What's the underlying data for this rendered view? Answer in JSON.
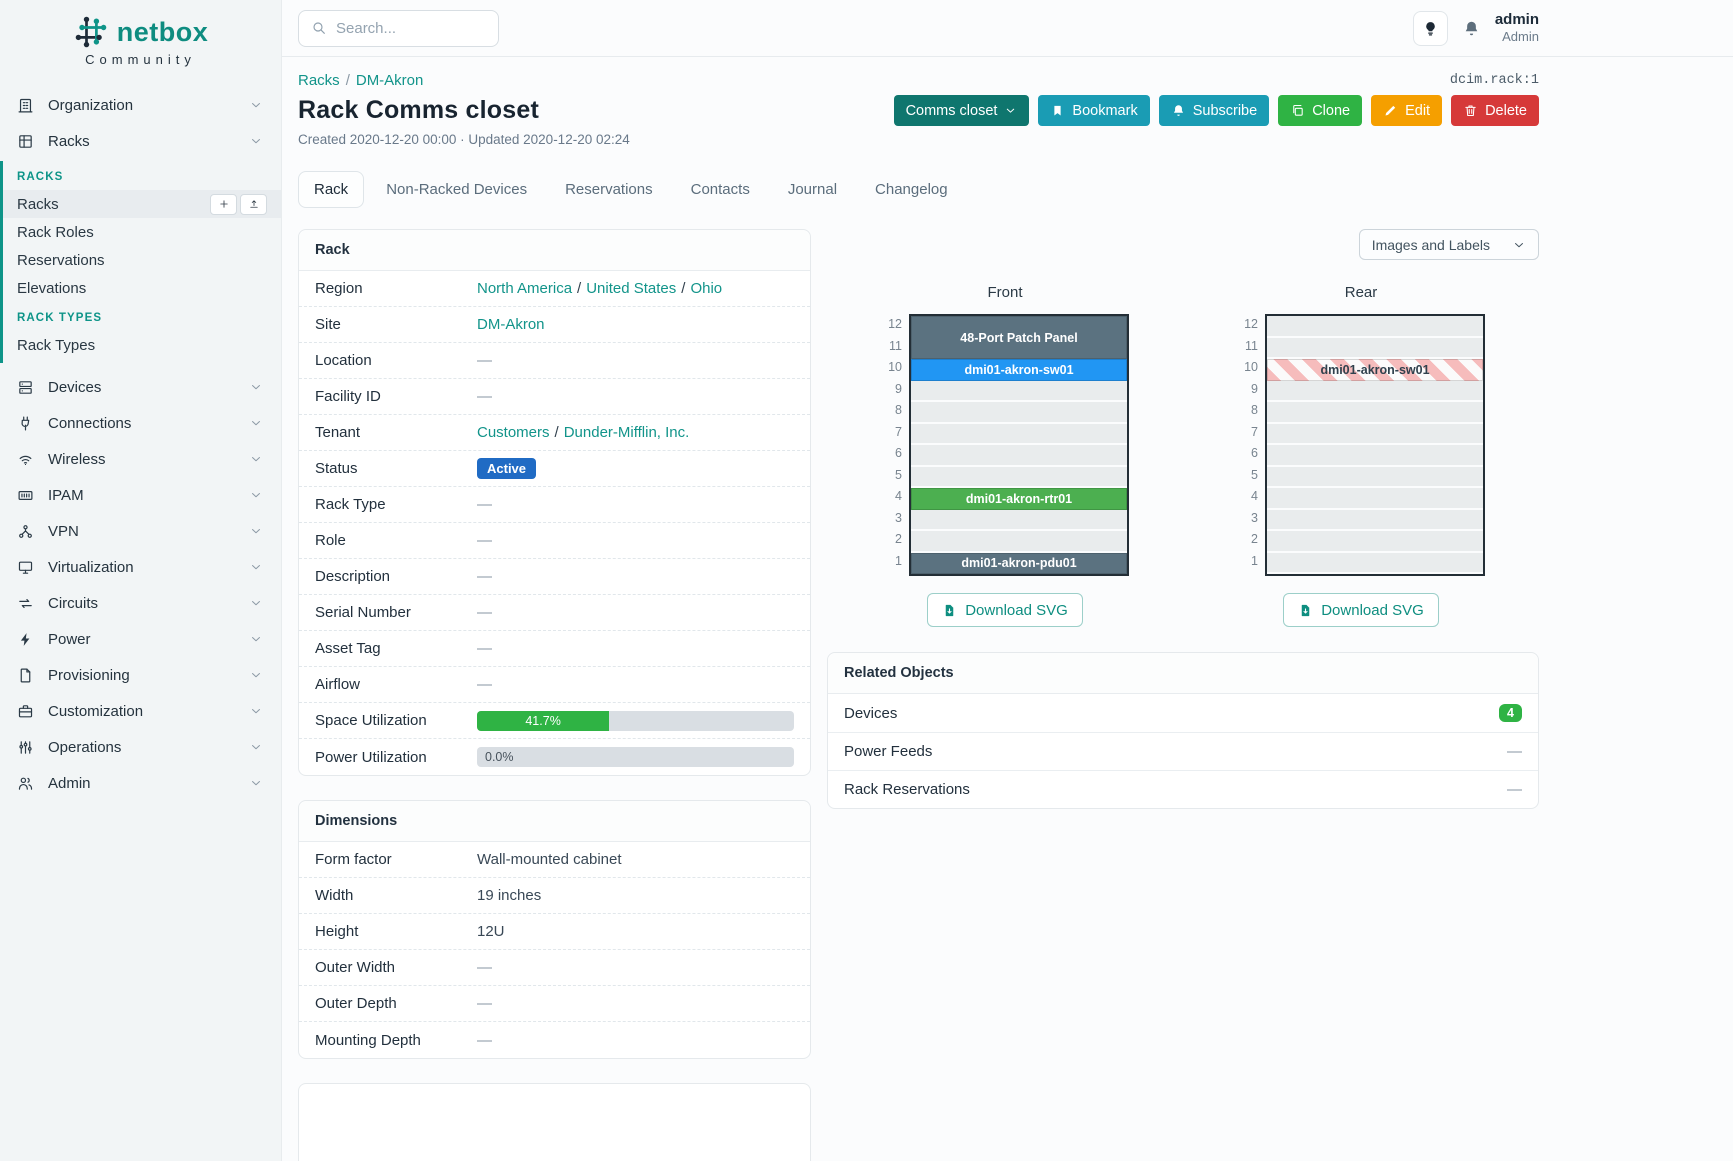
{
  "brand": {
    "name": "netbox",
    "subtitle": "Community"
  },
  "topbar": {
    "search_placeholder": "Search...",
    "user_name": "admin",
    "user_role": "Admin"
  },
  "breadcrumb": {
    "links": [
      "Racks",
      "DM-Akron"
    ],
    "object_id": "dcim.rack:1"
  },
  "page": {
    "title": "Rack Comms closet",
    "meta": "Created 2020-12-20 00:00 · Updated 2020-12-20 02:24"
  },
  "actions": {
    "selector_label": "Comms closet",
    "buttons": [
      {
        "id": "bookmark",
        "label": "Bookmark",
        "icon": "bookmark-icon",
        "color": "#1a9cb4"
      },
      {
        "id": "subscribe",
        "label": "Subscribe",
        "icon": "bell-plus-icon",
        "color": "#1a9cb4"
      },
      {
        "id": "clone",
        "label": "Clone",
        "icon": "copy-icon",
        "color": "#2fb344"
      },
      {
        "id": "edit",
        "label": "Edit",
        "icon": "pencil-icon",
        "color": "#f59f00"
      },
      {
        "id": "delete",
        "label": "Delete",
        "icon": "trash-icon",
        "color": "#d63939"
      }
    ]
  },
  "tabs": [
    {
      "label": "Rack",
      "active": true
    },
    {
      "label": "Non-Racked Devices"
    },
    {
      "label": "Reservations"
    },
    {
      "label": "Contacts"
    },
    {
      "label": "Journal"
    },
    {
      "label": "Changelog"
    }
  ],
  "sidebar": {
    "groups_top": [
      {
        "label": "Organization",
        "icon": "building-icon"
      },
      {
        "label": "Racks",
        "icon": "rack-grid-icon",
        "expanded": true
      }
    ],
    "sections": [
      {
        "header": "RACKS",
        "items": [
          {
            "label": "Racks",
            "active": true,
            "quick_add": true
          },
          {
            "label": "Rack Roles"
          },
          {
            "label": "Reservations"
          },
          {
            "label": "Elevations"
          }
        ]
      },
      {
        "header": "RACK TYPES",
        "items": [
          {
            "label": "Rack Types"
          }
        ]
      }
    ],
    "groups_bottom": [
      {
        "label": "Devices",
        "icon": "server-icon"
      },
      {
        "label": "Connections",
        "icon": "plug-icon"
      },
      {
        "label": "Wireless",
        "icon": "wifi-icon"
      },
      {
        "label": "IPAM",
        "icon": "ipam-icon"
      },
      {
        "label": "VPN",
        "icon": "vpn-icon"
      },
      {
        "label": "Virtualization",
        "icon": "monitor-icon"
      },
      {
        "label": "Circuits",
        "icon": "circuits-icon"
      },
      {
        "label": "Power",
        "icon": "bolt-icon"
      },
      {
        "label": "Provisioning",
        "icon": "file-icon"
      },
      {
        "label": "Customization",
        "icon": "briefcase-icon"
      },
      {
        "label": "Operations",
        "icon": "ops-icon"
      },
      {
        "label": "Admin",
        "icon": "users-icon"
      }
    ]
  },
  "rack_panel": {
    "title": "Rack",
    "rows": [
      {
        "label": "Region",
        "type": "links",
        "links": [
          "North America",
          "United States",
          "Ohio"
        ]
      },
      {
        "label": "Site",
        "type": "links",
        "links": [
          "DM-Akron"
        ]
      },
      {
        "label": "Location",
        "type": "dash",
        "value": "—"
      },
      {
        "label": "Facility ID",
        "type": "dash",
        "value": "—"
      },
      {
        "label": "Tenant",
        "type": "links",
        "links": [
          "Customers",
          "Dunder-Mifflin, Inc."
        ]
      },
      {
        "label": "Status",
        "type": "badge",
        "value": "Active",
        "color": "#206bc4"
      },
      {
        "label": "Rack Type",
        "type": "dash",
        "value": "—"
      },
      {
        "label": "Role",
        "type": "dash",
        "value": "—"
      },
      {
        "label": "Description",
        "type": "dash",
        "value": "—"
      },
      {
        "label": "Serial Number",
        "type": "dash",
        "value": "—"
      },
      {
        "label": "Asset Tag",
        "type": "dash",
        "value": "—"
      },
      {
        "label": "Airflow",
        "type": "dash",
        "value": "—"
      },
      {
        "label": "Space Utilization",
        "type": "progress",
        "value": "41.7%",
        "pct": 41.7,
        "color": "#2fb344"
      },
      {
        "label": "Power Utilization",
        "type": "progress",
        "value": "0.0%",
        "pct": 0,
        "color": "#2fb344"
      }
    ]
  },
  "dimensions_panel": {
    "title": "Dimensions",
    "rows": [
      {
        "label": "Form factor",
        "type": "text",
        "value": "Wall-mounted cabinet"
      },
      {
        "label": "Width",
        "type": "text",
        "value": "19 inches"
      },
      {
        "label": "Height",
        "type": "text",
        "value": "12U"
      },
      {
        "label": "Outer Width",
        "type": "dash",
        "value": "—"
      },
      {
        "label": "Outer Depth",
        "type": "dash",
        "value": "—"
      },
      {
        "label": "Mounting Depth",
        "type": "dash",
        "value": "—"
      }
    ]
  },
  "elevations": {
    "view_toggle": "Images and Labels",
    "download_label": "Download SVG",
    "unit_count": 12,
    "views": [
      {
        "title": "Front",
        "units": [
          {
            "top_u": 12,
            "span": 2,
            "label": "48-Port Patch Panel",
            "fill": "#5b7280",
            "text_color": "#ffffff"
          },
          {
            "top_u": 10,
            "span": 1,
            "label": "dmi01-akron-sw01",
            "fill": "#2196f3",
            "text_color": "#ffffff"
          },
          {
            "top_u": 4,
            "span": 1,
            "label": "dmi01-akron-rtr01",
            "fill": "#4caf50",
            "text_color": "#ffffff"
          },
          {
            "top_u": 1,
            "span": 1,
            "label": "dmi01-akron-pdu01",
            "fill": "#5b7280",
            "text_color": "#ffffff"
          }
        ]
      },
      {
        "title": "Rear",
        "units": [
          {
            "top_u": 10,
            "span": 1,
            "label": "dmi01-akron-sw01",
            "fill": "striped",
            "text_color": "#30414d"
          }
        ]
      }
    ]
  },
  "related_objects": {
    "title": "Related Objects",
    "rows": [
      {
        "label": "Devices",
        "badge": "4",
        "badge_color": "#2fb344"
      },
      {
        "label": "Power Feeds",
        "value": "—"
      },
      {
        "label": "Rack Reservations",
        "value": "—"
      }
    ]
  }
}
